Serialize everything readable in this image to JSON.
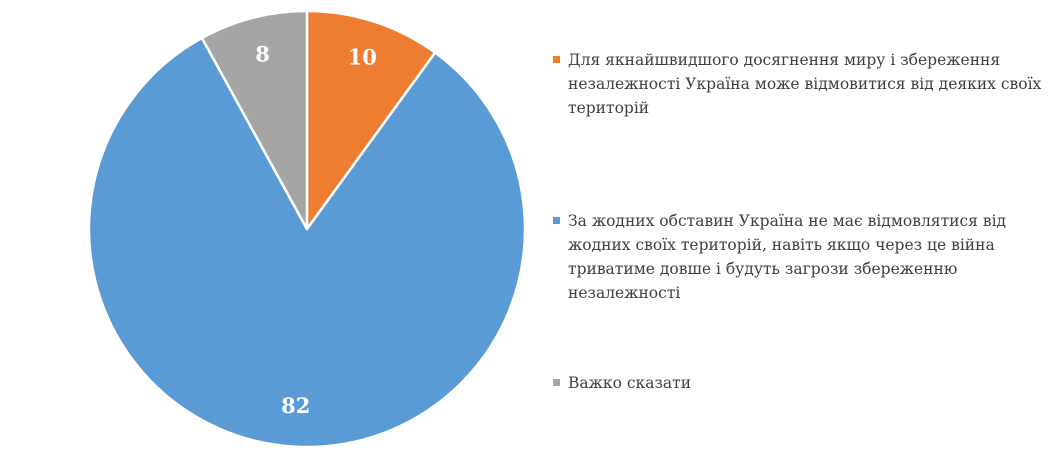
{
  "chart_data": {
    "type": "pie",
    "slices": [
      {
        "label": "Для якнайшвидшого досягнення миру і збереження незалежності Україна може відмовитися від деяких своїх територій",
        "value": 10,
        "color": "#ed7d31"
      },
      {
        "label": "За жодних обставин Україна не має відмовлятися від жодних своїх територій, навіть якщо через це війна триватиме довше і будуть загрози збереженню незалежності",
        "value": 82,
        "color": "#5b9bd5"
      },
      {
        "label": "Важко сказати",
        "value": 8,
        "color": "#a5a5a5"
      }
    ],
    "legend_position": "right",
    "data_labels": [
      "10",
      "82",
      "8"
    ]
  }
}
